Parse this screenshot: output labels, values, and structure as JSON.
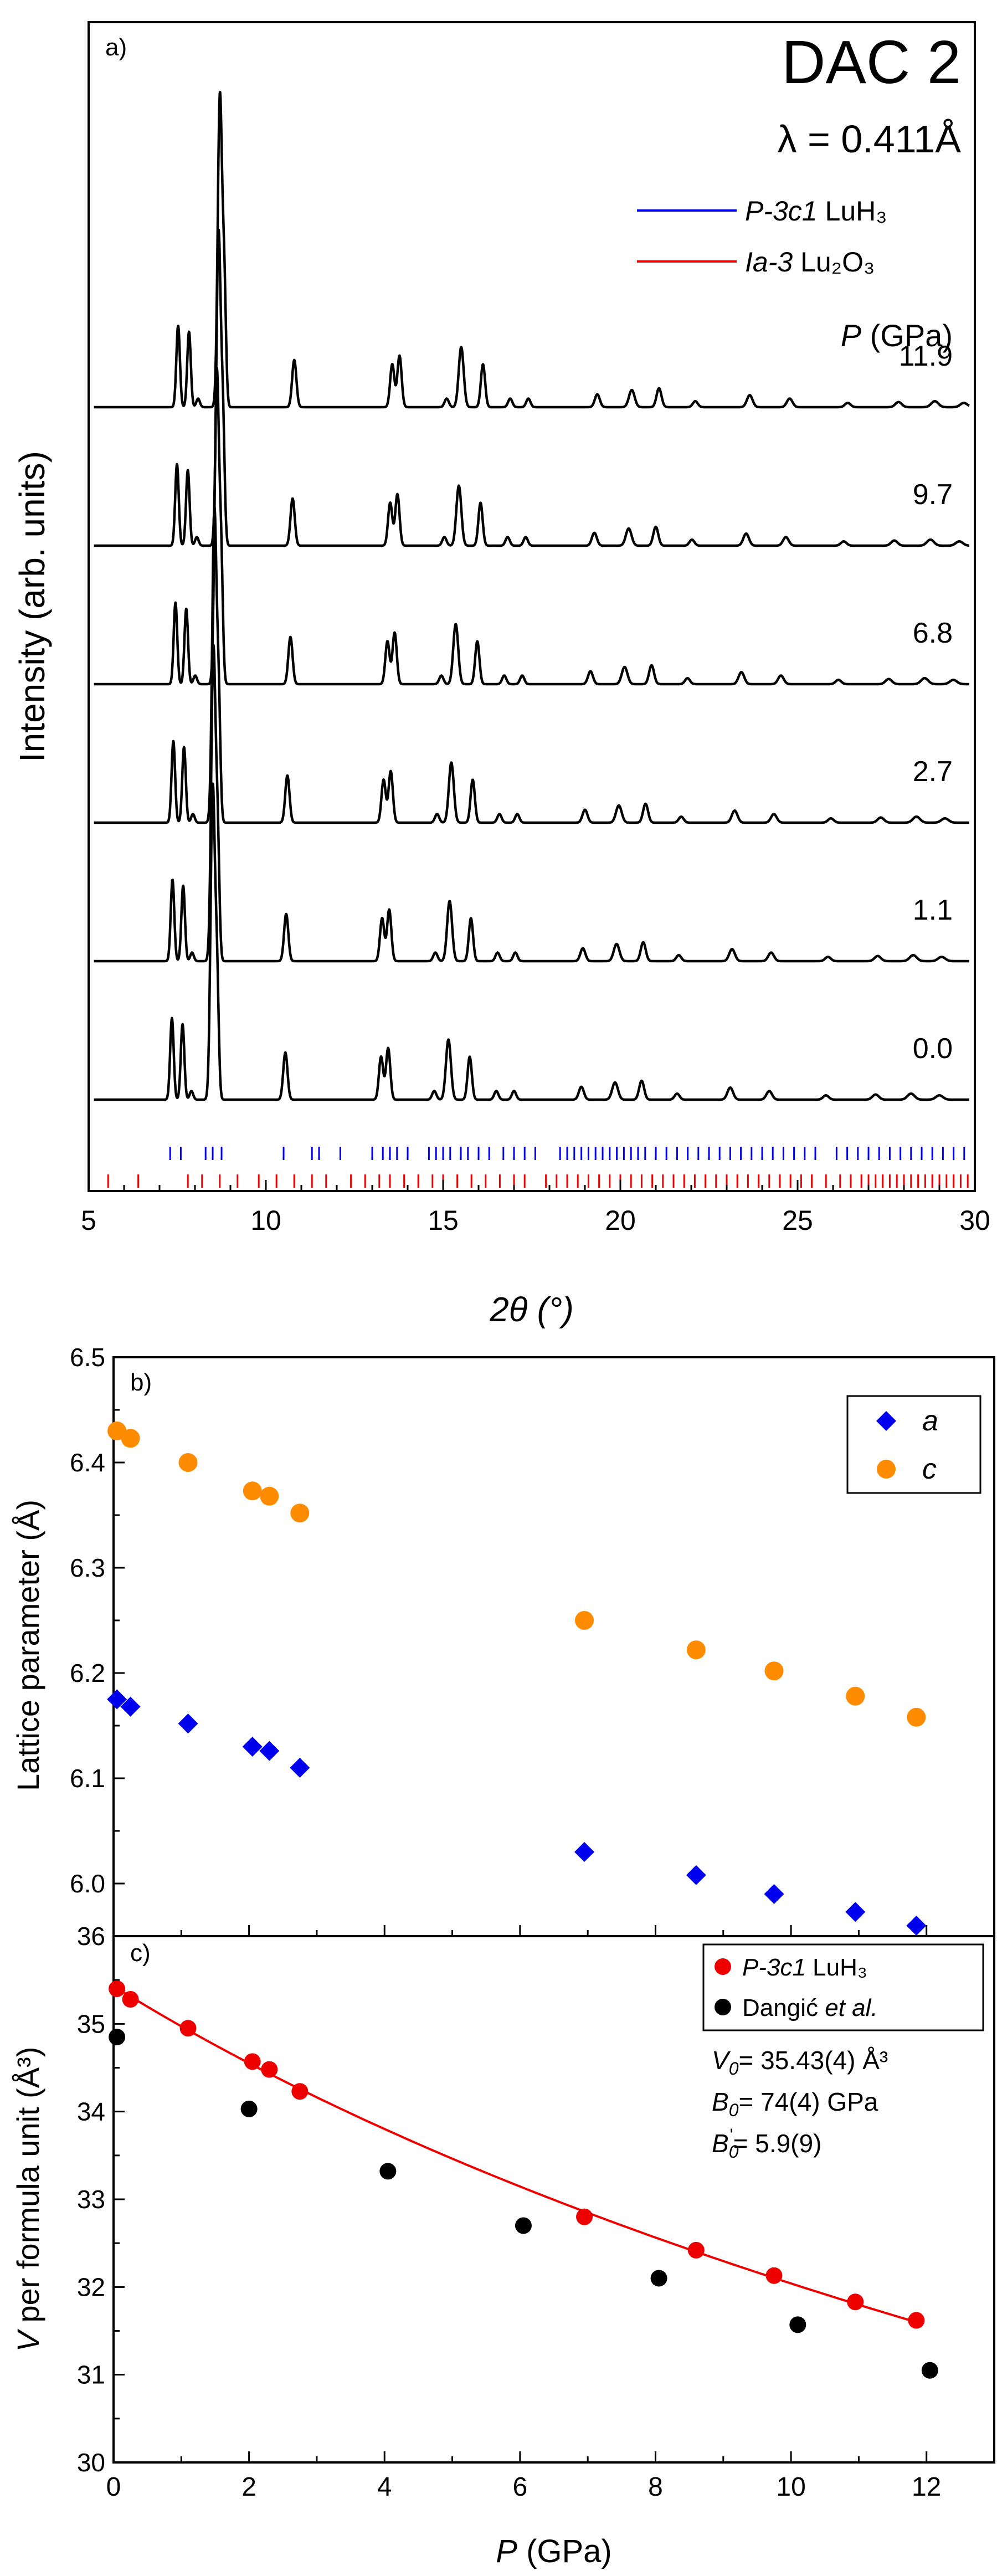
{
  "chart_data": [
    {
      "type": "line",
      "panel": "a)",
      "title": "DAC 2",
      "wavelength": "λ = 0.411Å",
      "xlabel": "2θ (°)",
      "ylabel": "Intensity (arb. units)",
      "xlim": [
        5,
        30
      ],
      "xticks": [
        "5",
        "10",
        "15",
        "20",
        "25",
        "30"
      ],
      "legend": [
        {
          "name": "P-3c1",
          "suffix": " LuH₃",
          "color": "#0000ee"
        },
        {
          "name": "Ia-3",
          "suffix": " Lu₂O₃",
          "color": "#ee0000"
        }
      ],
      "pressure_header": "(GPa)",
      "pressure_symbol": "P",
      "peak_shift_per_gpa": 0.02,
      "series": [
        {
          "name": "0.0",
          "pressure": 0.0
        },
        {
          "name": "1.1",
          "pressure": 1.1
        },
        {
          "name": "2.7",
          "pressure": 2.7
        },
        {
          "name": "6.8",
          "pressure": 6.8
        },
        {
          "name": "9.7",
          "pressure": 9.7
        },
        {
          "name": "11.9",
          "pressure": 11.9
        }
      ],
      "peaks": [
        {
          "pos": 7.35,
          "h": 0.95,
          "w": 0.05
        },
        {
          "pos": 7.65,
          "h": 0.88,
          "w": 0.05
        },
        {
          "pos": 7.9,
          "h": 0.1,
          "w": 0.05
        },
        {
          "pos": 8.5,
          "h": 3.6,
          "w": 0.06
        },
        {
          "pos": 8.62,
          "h": 1.4,
          "w": 0.05
        },
        {
          "pos": 10.55,
          "h": 0.55,
          "w": 0.06
        },
        {
          "pos": 13.25,
          "h": 0.5,
          "w": 0.06
        },
        {
          "pos": 13.45,
          "h": 0.6,
          "w": 0.06
        },
        {
          "pos": 14.75,
          "h": 0.1,
          "w": 0.06
        },
        {
          "pos": 15.15,
          "h": 0.7,
          "w": 0.07
        },
        {
          "pos": 15.75,
          "h": 0.5,
          "w": 0.06
        },
        {
          "pos": 16.5,
          "h": 0.1,
          "w": 0.06
        },
        {
          "pos": 17.0,
          "h": 0.1,
          "w": 0.06
        },
        {
          "pos": 18.9,
          "h": 0.15,
          "w": 0.07
        },
        {
          "pos": 19.85,
          "h": 0.2,
          "w": 0.08
        },
        {
          "pos": 20.6,
          "h": 0.22,
          "w": 0.07
        },
        {
          "pos": 21.6,
          "h": 0.07,
          "w": 0.07
        },
        {
          "pos": 23.1,
          "h": 0.14,
          "w": 0.08
        },
        {
          "pos": 24.2,
          "h": 0.1,
          "w": 0.08
        },
        {
          "pos": 25.8,
          "h": 0.05,
          "w": 0.08
        },
        {
          "pos": 27.2,
          "h": 0.06,
          "w": 0.09
        },
        {
          "pos": 28.2,
          "h": 0.07,
          "w": 0.1
        },
        {
          "pos": 29.0,
          "h": 0.05,
          "w": 0.1
        }
      ],
      "ticks_LuH3": [
        7.3,
        7.6,
        8.3,
        8.5,
        8.75,
        10.5,
        11.3,
        11.5,
        12.1,
        13.0,
        13.3,
        13.5,
        13.7,
        14.0,
        14.6,
        14.8,
        15.0,
        15.2,
        15.5,
        15.7,
        16.0,
        16.3,
        16.7,
        17.0,
        17.3,
        17.6,
        18.3,
        18.5,
        18.7,
        18.9,
        19.1,
        19.3,
        19.5,
        19.7,
        19.9,
        20.1,
        20.3,
        20.5,
        20.7,
        21.0,
        21.3,
        21.6,
        21.9,
        22.2,
        22.5,
        22.8,
        23.1,
        23.4,
        23.7,
        24.0,
        24.3,
        24.6,
        24.9,
        25.2,
        25.5,
        26.1,
        26.4,
        26.7,
        27.0,
        27.3,
        27.6,
        27.9,
        28.2,
        28.5,
        28.8,
        29.1,
        29.4,
        29.7
      ],
      "ticks_Lu2O3": [
        5.55,
        6.4,
        7.8,
        8.2,
        8.7,
        9.2,
        9.8,
        10.3,
        10.8,
        11.3,
        11.7,
        12.4,
        12.8,
        13.2,
        13.5,
        13.9,
        14.3,
        14.7,
        15.0,
        15.4,
        15.8,
        16.2,
        16.6,
        17.0,
        17.3,
        17.9,
        18.2,
        18.5,
        18.8,
        19.1,
        19.4,
        19.7,
        20.0,
        20.3,
        20.6,
        20.9,
        21.2,
        21.5,
        21.8,
        22.1,
        22.4,
        22.7,
        23.0,
        23.3,
        23.6,
        23.9,
        24.2,
        24.5,
        24.8,
        25.1,
        25.4,
        25.8,
        26.2,
        26.5,
        26.8,
        27.0,
        27.2,
        27.4,
        27.6,
        27.8,
        28.0,
        28.2,
        28.4,
        28.6,
        28.8,
        29.0,
        29.2,
        29.4,
        29.6,
        29.8
      ]
    },
    {
      "type": "scatter",
      "panel": "b)",
      "xlabel": "",
      "ylabel": "Lattice parameter (Å)",
      "xlim": [
        0,
        13
      ],
      "ylim": [
        5.95,
        6.5
      ],
      "yticks": [
        "6.0",
        "6.1",
        "6.2",
        "6.3",
        "6.4",
        "6.5"
      ],
      "series": [
        {
          "name": "a",
          "color": "#0000ee",
          "marker": "diamond",
          "x": [
            0.05,
            0.25,
            1.1,
            2.05,
            2.3,
            2.75,
            6.95,
            8.6,
            9.75,
            10.95,
            11.85
          ],
          "y": [
            6.175,
            6.168,
            6.152,
            6.13,
            6.126,
            6.11,
            6.03,
            6.008,
            5.99,
            5.973,
            5.96
          ]
        },
        {
          "name": "c",
          "color": "#ff8c00",
          "marker": "circle",
          "x": [
            0.05,
            0.25,
            1.1,
            2.05,
            2.3,
            2.75,
            6.95,
            8.6,
            9.75,
            10.95,
            11.85
          ],
          "y": [
            6.43,
            6.423,
            6.4,
            6.373,
            6.368,
            6.352,
            6.25,
            6.222,
            6.202,
            6.178,
            6.158
          ]
        }
      ]
    },
    {
      "type": "scatter",
      "panel": "c)",
      "xlabel": "(GPa)",
      "xlabel_symbol": "P",
      "ylabel": "per formula unit (Å³)",
      "ylabel_symbol": "V",
      "xlim": [
        0,
        13
      ],
      "ylim": [
        30,
        36
      ],
      "xticks": [
        "0",
        "2",
        "4",
        "6",
        "8",
        "10",
        "12"
      ],
      "yticks": [
        "30",
        "31",
        "32",
        "33",
        "34",
        "35",
        "36"
      ],
      "fit": {
        "V0": 35.43,
        "B0": 74,
        "B0p": 5.9,
        "color": "#ee0000"
      },
      "fit_labels": {
        "V0": "= 35.43(4) Å³",
        "B0": "= 74(4) GPa",
        "B0p": "= 5.9(9)"
      },
      "series": [
        {
          "name": "P-3c1",
          "suffix": " LuH₃",
          "color": "#ee0000",
          "x": [
            0.05,
            0.25,
            1.1,
            2.05,
            2.3,
            2.75,
            6.95,
            8.6,
            9.75,
            10.95,
            11.85
          ],
          "y": [
            35.4,
            35.28,
            34.95,
            34.57,
            34.48,
            34.23,
            32.8,
            32.42,
            32.13,
            31.83,
            31.62
          ]
        },
        {
          "name": "Dangić",
          "suffix": " et al.",
          "color": "#000000",
          "x": [
            0.05,
            2.0,
            4.05,
            6.05,
            8.05,
            10.1,
            12.05
          ],
          "y": [
            34.85,
            34.03,
            33.32,
            32.7,
            32.1,
            31.57,
            31.05
          ]
        }
      ]
    }
  ]
}
